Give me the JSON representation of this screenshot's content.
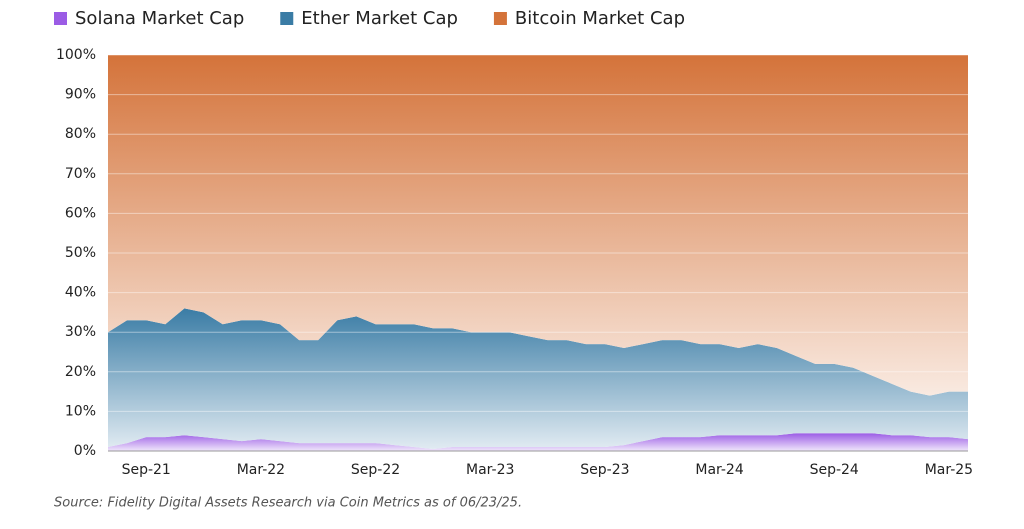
{
  "chart_data": {
    "type": "stacked-area",
    "categories": [
      null,
      null,
      "Sep-21",
      null,
      null,
      null,
      null,
      null,
      "Mar-22",
      null,
      null,
      null,
      null,
      null,
      "Sep-22",
      null,
      null,
      null,
      null,
      null,
      "Mar-23",
      null,
      null,
      null,
      null,
      null,
      "Sep-23",
      null,
      null,
      null,
      null,
      null,
      "Mar-24",
      null,
      null,
      null,
      null,
      null,
      "Sep-24",
      null,
      null,
      null,
      null,
      null,
      "Mar-25",
      null
    ],
    "series": [
      {
        "name": "Solana Market Cap",
        "color": "#9b5ce5",
        "values": [
          1,
          2,
          3.5,
          3.5,
          4,
          3.5,
          3,
          2.5,
          3,
          2.5,
          2,
          2,
          2,
          2,
          2,
          1.5,
          1,
          0.5,
          1,
          1,
          1,
          1,
          1,
          1,
          1,
          1,
          1,
          1.5,
          2.5,
          3.5,
          3.5,
          3.5,
          4,
          4,
          4,
          4,
          4.5,
          4.5,
          4.5,
          4.5,
          4.5,
          4,
          4,
          3.5,
          3.5,
          3
        ]
      },
      {
        "name": "Ether Market Cap",
        "color": "#3a7ca5",
        "values": [
          29,
          31,
          29.5,
          28.5,
          32,
          31.5,
          29,
          30.5,
          30,
          29.5,
          26,
          26,
          31,
          32,
          30,
          30.5,
          31,
          30.5,
          30,
          29,
          29,
          29,
          28,
          27,
          27,
          26,
          26,
          24.5,
          24.5,
          24.5,
          24.5,
          23.5,
          23,
          22,
          23,
          22,
          19.5,
          17.5,
          17.5,
          16.5,
          14.5,
          13,
          11,
          10.5,
          11.5,
          12
        ]
      },
      {
        "name": "Bitcoin Market Cap",
        "color": "#d4733a",
        "values": [
          70,
          67,
          67,
          68,
          64,
          65,
          68,
          67,
          67,
          68,
          72,
          72,
          67,
          66,
          68,
          68,
          68,
          69,
          69,
          70,
          70,
          70,
          71,
          72,
          72,
          73,
          73,
          74,
          73,
          72,
          72,
          73,
          73,
          74,
          73,
          74,
          76,
          78,
          78,
          79,
          81,
          83,
          85,
          86,
          85,
          85
        ]
      }
    ],
    "ylim": [
      0,
      100
    ],
    "yticks": [
      {
        "value": 0,
        "label": "0%"
      },
      {
        "value": 10,
        "label": "10%"
      },
      {
        "value": 20,
        "label": "20%"
      },
      {
        "value": 30,
        "label": "30%"
      },
      {
        "value": 40,
        "label": "40%"
      },
      {
        "value": 50,
        "label": "50%"
      },
      {
        "value": 60,
        "label": "60%"
      },
      {
        "value": 70,
        "label": "70%"
      },
      {
        "value": 80,
        "label": "80%"
      },
      {
        "value": 90,
        "label": "90%"
      },
      {
        "value": 100,
        "label": "100%"
      }
    ],
    "grid": true,
    "legend": "top",
    "source": "Source: Fidelity Digital Assets Research via Coin Metrics as of 06/23/25."
  }
}
